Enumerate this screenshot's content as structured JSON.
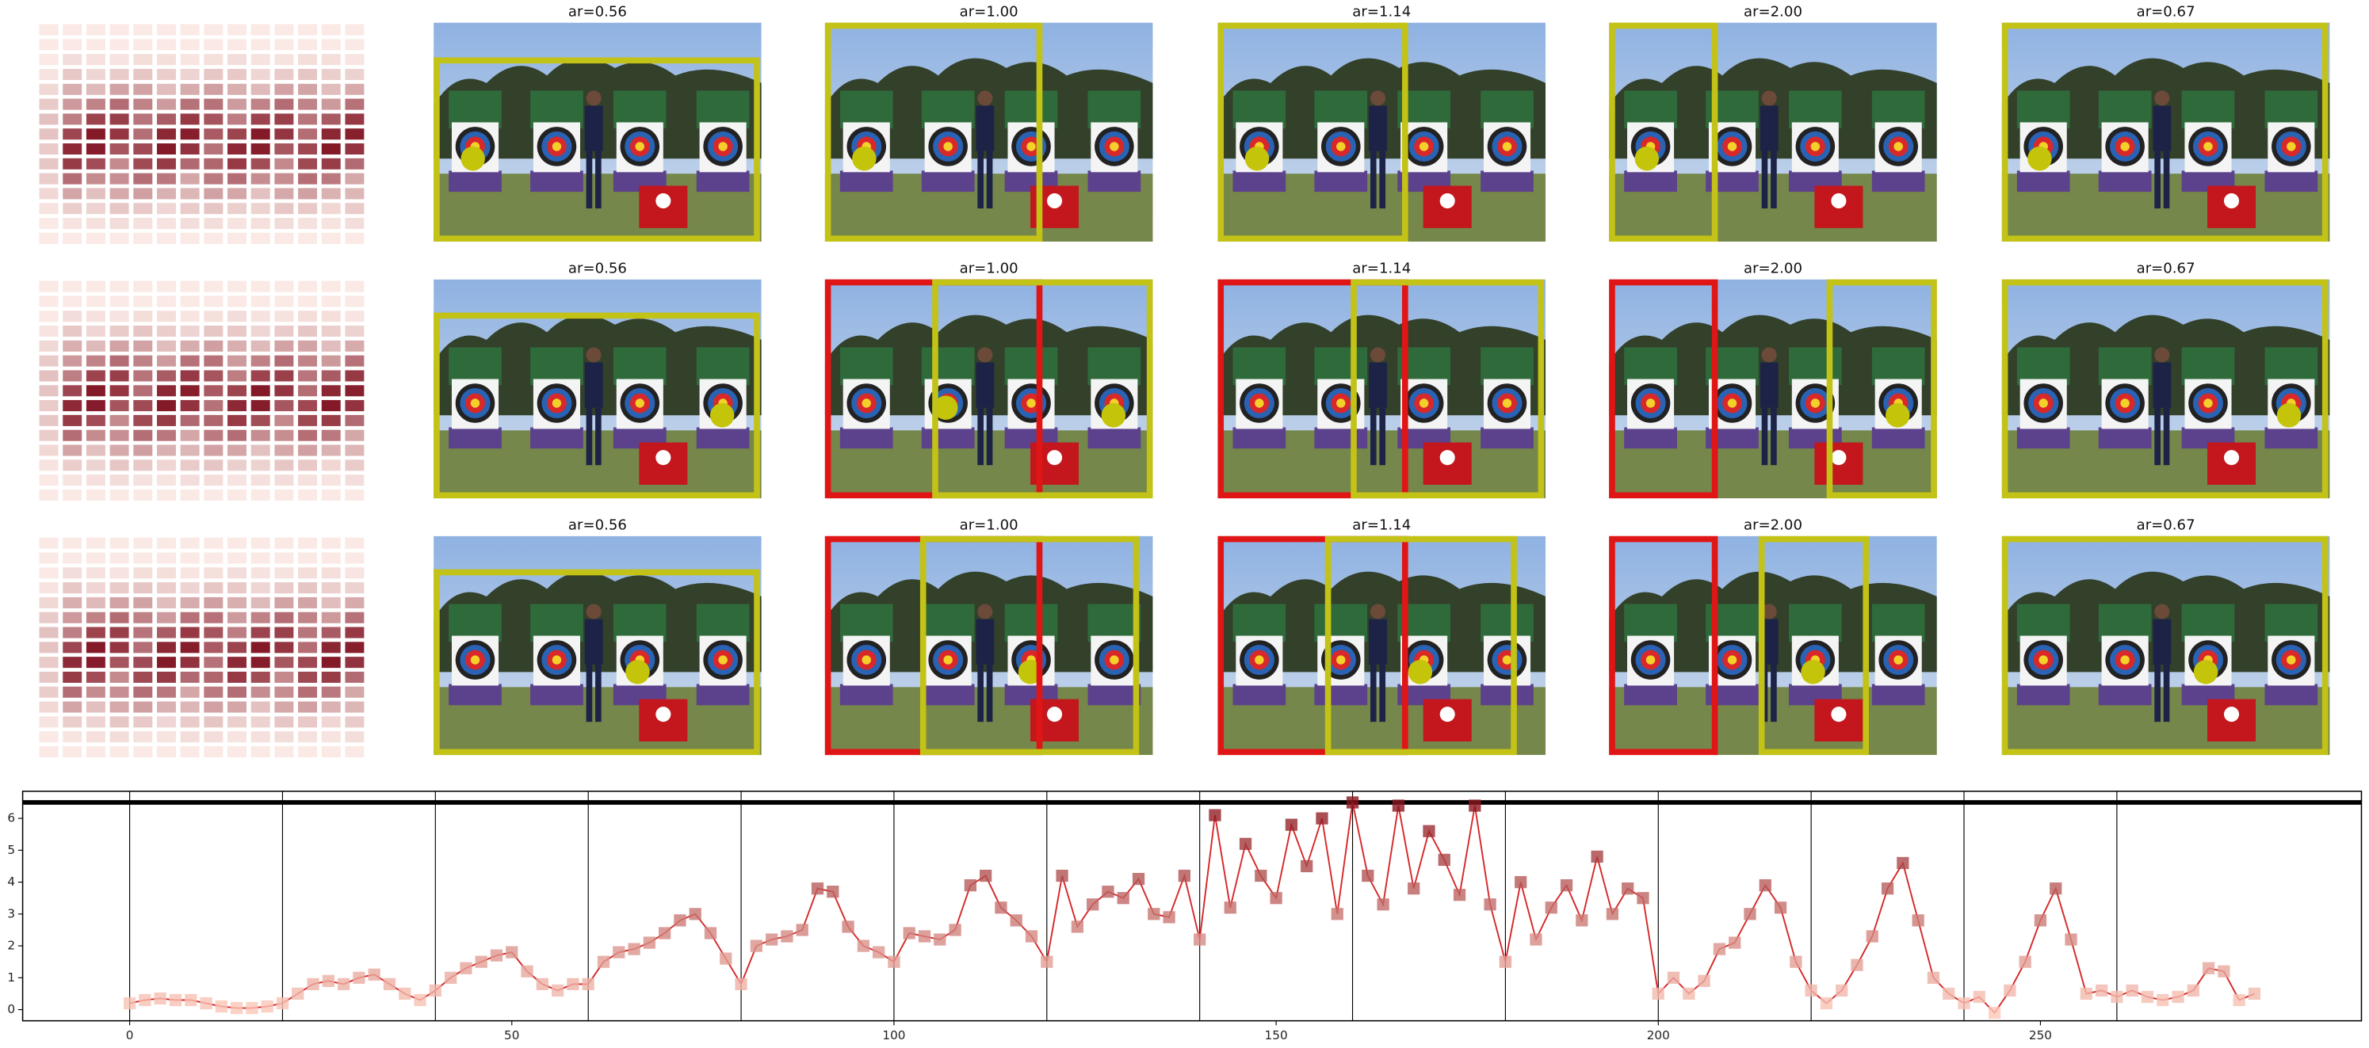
{
  "panel_rows": [
    [
      "ar=0.56",
      "ar=1.00",
      "ar=1.14",
      "ar=2.00",
      "ar=0.67"
    ],
    [
      "ar=0.56",
      "ar=1.00",
      "ar=1.14",
      "ar=2.00",
      "ar=0.67"
    ],
    [
      "ar=0.56",
      "ar=1.00",
      "ar=1.14",
      "ar=2.00",
      "ar=0.67"
    ]
  ],
  "chart_data": {
    "type": "line",
    "color": "#d62728",
    "x": [
      0,
      2,
      4,
      6,
      8,
      10,
      12,
      14,
      16,
      18,
      20,
      22,
      24,
      26,
      28,
      30,
      32,
      34,
      36,
      38,
      40,
      42,
      44,
      46,
      48,
      50,
      52,
      54,
      56,
      58,
      60,
      62,
      64,
      66,
      68,
      70,
      72,
      74,
      76,
      78,
      80,
      82,
      84,
      86,
      88,
      90,
      92,
      94,
      96,
      98,
      100,
      102,
      104,
      106,
      108,
      110,
      112,
      114,
      116,
      118,
      120,
      122,
      124,
      126,
      128,
      130,
      132,
      134,
      136,
      138,
      140,
      142,
      144,
      146,
      148,
      150,
      152,
      154,
      156,
      158,
      160,
      162,
      164,
      166,
      168,
      170,
      172,
      174,
      176,
      178,
      180,
      182,
      184,
      186,
      188,
      190,
      192,
      194,
      196,
      198,
      200,
      202,
      204,
      206,
      208,
      210,
      212,
      214,
      216,
      218,
      220,
      222,
      224,
      226,
      228,
      230,
      232,
      234,
      236,
      238,
      240,
      242,
      244,
      246,
      248,
      250,
      252,
      254,
      256,
      258,
      260,
      262,
      264,
      266,
      268,
      270,
      272,
      274,
      276,
      278
    ],
    "values": [
      0.2,
      0.3,
      0.35,
      0.3,
      0.3,
      0.2,
      0.1,
      0.05,
      0.05,
      0.1,
      0.2,
      0.5,
      0.8,
      0.9,
      0.8,
      1.0,
      1.1,
      0.8,
      0.5,
      0.3,
      0.6,
      1.0,
      1.3,
      1.5,
      1.7,
      1.8,
      1.2,
      0.8,
      0.6,
      0.8,
      0.8,
      1.5,
      1.8,
      1.9,
      2.1,
      2.4,
      2.8,
      3.0,
      2.4,
      1.6,
      0.8,
      2.0,
      2.2,
      2.3,
      2.5,
      3.8,
      3.7,
      2.6,
      2.0,
      1.8,
      1.5,
      2.4,
      2.3,
      2.2,
      2.5,
      3.9,
      4.2,
      3.2,
      2.8,
      2.3,
      1.5,
      4.2,
      2.6,
      3.3,
      3.7,
      3.5,
      4.1,
      3.0,
      2.9,
      4.2,
      2.2,
      6.1,
      3.2,
      5.2,
      4.2,
      3.5,
      5.8,
      4.5,
      6.0,
      3.0,
      6.5,
      4.2,
      3.3,
      6.4,
      3.8,
      5.6,
      4.7,
      3.6,
      6.4,
      3.3,
      1.5,
      4.0,
      2.2,
      3.2,
      3.9,
      2.8,
      4.8,
      3.0,
      3.8,
      3.5,
      0.5,
      1.0,
      0.5,
      0.9,
      1.9,
      2.1,
      3.0,
      3.9,
      3.2,
      1.5,
      0.6,
      0.2,
      0.6,
      1.4,
      2.3,
      3.8,
      4.6,
      2.8,
      1.0,
      0.5,
      0.2,
      0.4,
      -0.1,
      0.6,
      1.5,
      2.8,
      3.8,
      2.2,
      0.5,
      0.6,
      0.4,
      0.6,
      0.4,
      0.3,
      0.4,
      0.6,
      1.3,
      1.2,
      0.3,
      0.5
    ],
    "xlim": [
      -14,
      292
    ],
    "ylim": [
      -0.35,
      6.85
    ],
    "xticks": [
      0,
      50,
      100,
      150,
      200,
      250
    ],
    "yticks": [
      0,
      1,
      2,
      3,
      4,
      5,
      6
    ],
    "vlines": [
      0,
      20,
      40,
      60,
      80,
      100,
      120,
      140,
      160,
      180,
      200,
      220,
      240,
      260
    ],
    "hline": 6.5
  }
}
